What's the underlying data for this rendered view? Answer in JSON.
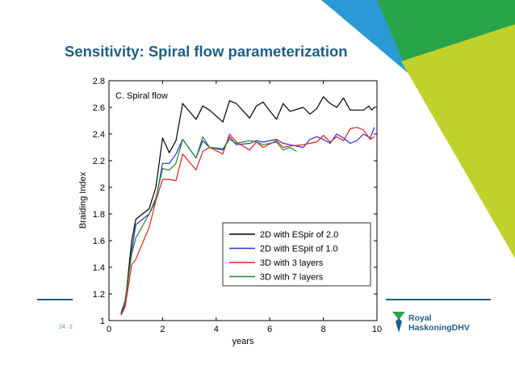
{
  "slide": {
    "title": "Sensitivity: Spiral flow parameterization",
    "page_left": "24",
    "page_partial": "2("
  },
  "branding": {
    "line1": "Royal",
    "line2": "HaskoningDHV",
    "colors": {
      "navy": "#1d5f86",
      "green": "#2aa44a",
      "lime": "#bfd22b",
      "teal": "#2a9ad6"
    }
  },
  "chart_data": {
    "type": "line",
    "title": "C. Spiral flow",
    "xlabel": "years",
    "ylabel": "Braiding Index",
    "xlim": [
      0,
      10
    ],
    "ylim": [
      1,
      2.8
    ],
    "xticks": [
      "0",
      "2",
      "4",
      "6",
      "8",
      "10"
    ],
    "yticks": [
      "1",
      "1.2",
      "1.4",
      "1.6",
      "1.8",
      "2",
      "2.2",
      "2.4",
      "2.6",
      "2.8"
    ],
    "legend_position": "bottom-right",
    "series": [
      {
        "name": "2D with ESpir of 2.0",
        "color": "#000000",
        "x": [
          0.45,
          0.6,
          0.85,
          1.0,
          1.5,
          1.75,
          2.0,
          2.25,
          2.5,
          2.75,
          3.25,
          3.5,
          3.75,
          4.25,
          4.5,
          4.75,
          5.25,
          5.5,
          5.75,
          6.25,
          6.5,
          6.75,
          7.25,
          7.5,
          7.75,
          8.0,
          8.25,
          8.5,
          8.75,
          9.0,
          9.25,
          9.5,
          9.7,
          9.8,
          9.9
        ],
        "y": [
          1.05,
          1.12,
          1.6,
          1.76,
          1.84,
          2.0,
          2.37,
          2.26,
          2.35,
          2.63,
          2.51,
          2.61,
          2.58,
          2.49,
          2.65,
          2.63,
          2.52,
          2.61,
          2.64,
          2.51,
          2.63,
          2.57,
          2.6,
          2.55,
          2.59,
          2.68,
          2.63,
          2.6,
          2.67,
          2.58,
          2.58,
          2.58,
          2.61,
          2.58,
          2.6
        ]
      },
      {
        "name": "2D with ESpit of 1.0",
        "color": "#2b2bd9",
        "x": [
          0.45,
          0.6,
          0.85,
          1.0,
          1.5,
          1.75,
          2.0,
          2.25,
          2.5,
          2.75,
          3.25,
          3.5,
          3.75,
          4.25,
          4.5,
          4.75,
          5.25,
          5.5,
          5.75,
          6.25,
          6.5,
          6.75,
          7.25,
          7.5,
          7.75,
          8.0,
          8.25,
          8.5,
          8.75,
          9.0,
          9.25,
          9.5,
          9.75,
          9.9
        ],
        "y": [
          1.05,
          1.12,
          1.52,
          1.72,
          1.8,
          1.9,
          2.18,
          2.18,
          2.25,
          2.36,
          2.22,
          2.35,
          2.3,
          2.28,
          2.38,
          2.32,
          2.33,
          2.35,
          2.34,
          2.36,
          2.33,
          2.32,
          2.3,
          2.36,
          2.38,
          2.36,
          2.33,
          2.4,
          2.37,
          2.33,
          2.35,
          2.4,
          2.37,
          2.45
        ]
      },
      {
        "name": "3D with 3 layers",
        "color": "#e02020",
        "x": [
          0.45,
          0.6,
          0.85,
          1.0,
          1.5,
          1.75,
          2.0,
          2.25,
          2.5,
          2.75,
          3.25,
          3.5,
          3.75,
          4.25,
          4.5,
          4.75,
          5.25,
          5.5,
          5.75,
          6.25,
          6.5,
          6.75,
          7.25,
          7.5,
          7.75,
          8.0,
          8.25,
          8.5,
          8.75,
          9.0,
          9.25,
          9.5,
          9.75,
          9.9
        ],
        "y": [
          1.04,
          1.1,
          1.42,
          1.46,
          1.7,
          1.9,
          2.06,
          2.06,
          2.05,
          2.25,
          2.13,
          2.27,
          2.3,
          2.25,
          2.4,
          2.34,
          2.28,
          2.34,
          2.3,
          2.35,
          2.3,
          2.31,
          2.32,
          2.33,
          2.34,
          2.39,
          2.34,
          2.38,
          2.35,
          2.44,
          2.45,
          2.43,
          2.36,
          2.38
        ]
      },
      {
        "name": "3D with 7 layers",
        "color": "#22882a",
        "x": [
          0.45,
          0.6,
          0.85,
          1.0,
          1.5,
          1.75,
          2.0,
          2.25,
          2.5,
          2.75,
          3.25,
          3.5,
          3.75,
          4.25,
          4.5,
          4.75,
          5.25,
          5.5,
          5.75,
          6.25,
          6.5,
          6.75,
          7.0
        ],
        "y": [
          1.06,
          1.15,
          1.5,
          1.62,
          1.8,
          1.92,
          2.14,
          2.13,
          2.18,
          2.36,
          2.22,
          2.38,
          2.3,
          2.29,
          2.36,
          2.33,
          2.35,
          2.34,
          2.32,
          2.34,
          2.28,
          2.3,
          2.27
        ]
      }
    ]
  }
}
